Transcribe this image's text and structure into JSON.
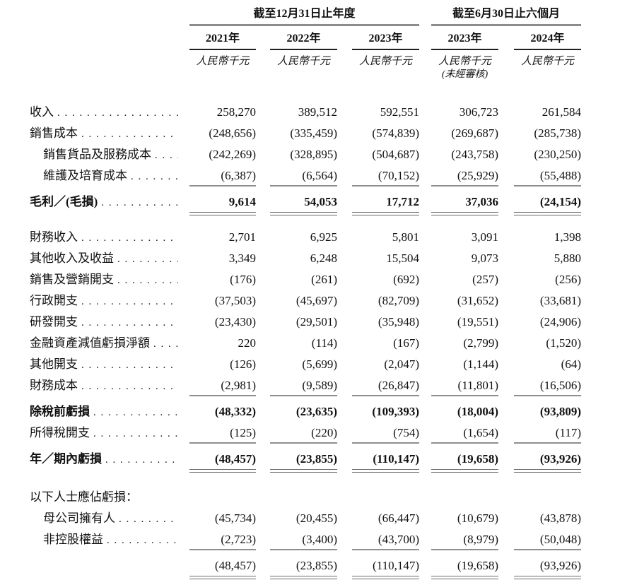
{
  "colors": {
    "text": "#111111",
    "thick_rule_gray": "#8c8c8c",
    "thin_rule_dark": "#1f1f1f",
    "data_rule_gray": "#8e8e8e"
  },
  "table": {
    "col_groups": [
      {
        "title": "截至12月31日止年度",
        "span": 3
      },
      {
        "title": "截至6月30日止六個月",
        "span": 2
      }
    ],
    "columns": [
      {
        "year": "2021年",
        "unit": "人民幣千元",
        "note": ""
      },
      {
        "year": "2022年",
        "unit": "人民幣千元",
        "note": ""
      },
      {
        "year": "2023年",
        "unit": "人民幣千元",
        "note": ""
      },
      {
        "year": "2023年",
        "unit": "人民幣千元",
        "note": "(未經審核)"
      },
      {
        "year": "2024年",
        "unit": "人民幣千元",
        "note": ""
      }
    ],
    "rows": [
      {
        "label": "收入",
        "leader": true,
        "indent": false,
        "bold": false,
        "rule": "",
        "gap_after": 0,
        "values": [
          "258,270",
          "389,512",
          "592,551",
          "306,723",
          "261,584"
        ]
      },
      {
        "label": "銷售成本",
        "leader": true,
        "indent": false,
        "bold": false,
        "rule": "",
        "gap_after": 0,
        "values": [
          "(248,656)",
          "(335,459)",
          "(574,839)",
          "(269,687)",
          "(285,738)"
        ]
      },
      {
        "label": "銷售貨品及服務成本",
        "leader": true,
        "indent": true,
        "bold": false,
        "rule": "",
        "gap_after": 0,
        "values": [
          "(242,269)",
          "(328,895)",
          "(504,687)",
          "(243,758)",
          "(230,250)"
        ]
      },
      {
        "label": "維護及培育成本",
        "leader": true,
        "indent": true,
        "bold": false,
        "rule": "single",
        "gap_after": 0,
        "values": [
          "(6,387)",
          "(6,564)",
          "(70,152)",
          "(25,929)",
          "(55,488)"
        ]
      },
      {
        "label": "毛利／(毛損)",
        "leader": true,
        "indent": false,
        "bold": true,
        "rule": "double",
        "gap_after": 10,
        "values": [
          "9,614",
          "54,053",
          "17,712",
          "37,036",
          "(24,154)"
        ]
      },
      {
        "label": "財務收入",
        "leader": true,
        "indent": false,
        "bold": false,
        "rule": "",
        "gap_after": 0,
        "values": [
          "2,701",
          "6,925",
          "5,801",
          "3,091",
          "1,398"
        ]
      },
      {
        "label": "其他收入及收益",
        "leader": true,
        "indent": false,
        "bold": false,
        "rule": "",
        "gap_after": 0,
        "values": [
          "3,349",
          "6,248",
          "15,504",
          "9,073",
          "5,880"
        ]
      },
      {
        "label": "銷售及營銷開支",
        "leader": true,
        "indent": false,
        "bold": false,
        "rule": "",
        "gap_after": 0,
        "values": [
          "(176)",
          "(261)",
          "(692)",
          "(257)",
          "(256)"
        ]
      },
      {
        "label": "行政開支",
        "leader": true,
        "indent": false,
        "bold": false,
        "rule": "",
        "gap_after": 0,
        "values": [
          "(37,503)",
          "(45,697)",
          "(82,709)",
          "(31,652)",
          "(33,681)"
        ]
      },
      {
        "label": "研發開支",
        "leader": true,
        "indent": false,
        "bold": false,
        "rule": "",
        "gap_after": 0,
        "values": [
          "(23,430)",
          "(29,501)",
          "(35,948)",
          "(19,551)",
          "(24,906)"
        ]
      },
      {
        "label": "金融資產減值虧損淨額",
        "leader": true,
        "indent": false,
        "bold": false,
        "rule": "",
        "gap_after": 0,
        "values": [
          "220",
          "(114)",
          "(167)",
          "(2,799)",
          "(1,520)"
        ]
      },
      {
        "label": "其他開支",
        "leader": true,
        "indent": false,
        "bold": false,
        "rule": "",
        "gap_after": 0,
        "values": [
          "(126)",
          "(5,699)",
          "(2,047)",
          "(1,144)",
          "(64)"
        ]
      },
      {
        "label": "財務成本",
        "leader": true,
        "indent": false,
        "bold": false,
        "rule": "single",
        "gap_after": 0,
        "values": [
          "(2,981)",
          "(9,589)",
          "(26,847)",
          "(11,801)",
          "(16,506)"
        ]
      },
      {
        "label": "除稅前虧損",
        "leader": true,
        "indent": false,
        "bold": true,
        "rule": "",
        "gap_after": 0,
        "values": [
          "(48,332)",
          "(23,635)",
          "(109,393)",
          "(18,004)",
          "(93,809)"
        ]
      },
      {
        "label": "所得稅開支",
        "leader": true,
        "indent": false,
        "bold": false,
        "rule": "single",
        "gap_after": 0,
        "values": [
          "(125)",
          "(220)",
          "(754)",
          "(1,654)",
          "(117)"
        ]
      },
      {
        "label": "年／期內虧損",
        "leader": true,
        "indent": false,
        "bold": true,
        "rule": "double",
        "gap_after": 14,
        "values": [
          "(48,457)",
          "(23,855)",
          "(110,147)",
          "(19,658)",
          "(93,926)"
        ]
      },
      {
        "label": "以下人士應佔虧損：",
        "leader": false,
        "indent": false,
        "bold": false,
        "rule": "",
        "gap_after": 0,
        "values": [
          "",
          "",
          "",
          "",
          ""
        ]
      },
      {
        "label": "母公司擁有人",
        "leader": true,
        "indent": true,
        "bold": false,
        "rule": "",
        "gap_after": 0,
        "values": [
          "(45,734)",
          "(20,455)",
          "(66,447)",
          "(10,679)",
          "(43,878)"
        ]
      },
      {
        "label": "非控股權益",
        "leader": true,
        "indent": true,
        "bold": false,
        "rule": "single",
        "gap_after": 0,
        "values": [
          "(2,723)",
          "(3,400)",
          "(43,700)",
          "(8,979)",
          "(50,048)"
        ]
      },
      {
        "label": "",
        "leader": false,
        "indent": false,
        "bold": false,
        "rule": "double",
        "gap_after": 0,
        "values": [
          "(48,457)",
          "(23,855)",
          "(110,147)",
          "(19,658)",
          "(93,926)"
        ]
      }
    ]
  }
}
